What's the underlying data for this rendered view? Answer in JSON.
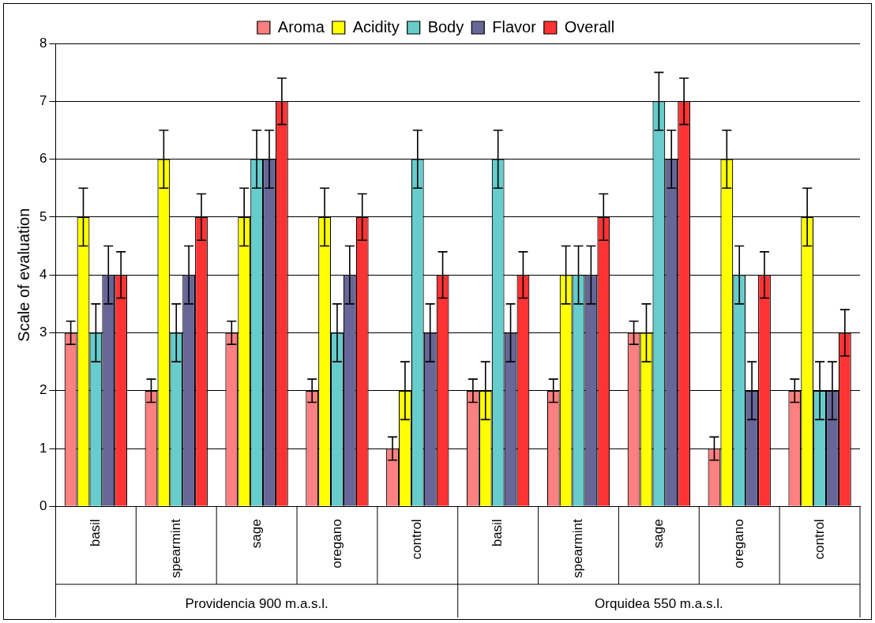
{
  "chart_data": {
    "type": "bar",
    "ylabel": "Scale of evaluation",
    "categories": [
      "basil",
      "spearmint",
      "sage",
      "oregano",
      "control",
      "basil",
      "spearmint",
      "sage",
      "oregano",
      "control"
    ],
    "annotations": [
      "Providencia 900 m.a.s.l.",
      "Orquidea 550 m.a.s.l."
    ],
    "series": [
      {
        "name": "Aroma",
        "color": "#ff8080",
        "values": [
          3,
          2,
          3,
          2,
          1,
          2,
          2,
          3,
          1,
          2
        ],
        "errors": [
          0.2,
          0.2,
          0.2,
          0.2,
          0.2,
          0.2,
          0.2,
          0.2,
          0.2,
          0.2
        ]
      },
      {
        "name": "Acidity",
        "color": "#ffff00",
        "values": [
          5,
          6,
          5,
          5,
          2,
          2,
          4,
          3,
          6,
          5
        ],
        "errors": [
          0.5,
          0.5,
          0.5,
          0.5,
          0.5,
          0.5,
          0.5,
          0.5,
          0.5,
          0.5
        ]
      },
      {
        "name": "Body",
        "color": "#66cccc",
        "values": [
          3,
          3,
          6,
          3,
          6,
          6,
          4,
          7,
          4,
          2
        ],
        "errors": [
          0.5,
          0.5,
          0.5,
          0.5,
          0.5,
          0.5,
          0.5,
          0.5,
          0.5,
          0.5
        ]
      },
      {
        "name": "Flavor",
        "color": "#666699",
        "values": [
          4,
          4,
          6,
          4,
          3,
          3,
          4,
          6,
          2,
          2
        ],
        "errors": [
          0.5,
          0.5,
          0.5,
          0.5,
          0.5,
          0.5,
          0.5,
          0.5,
          0.5,
          0.5
        ]
      },
      {
        "name": "Overall",
        "color": "#ff3333",
        "values": [
          4,
          5,
          7,
          5,
          4,
          4,
          5,
          7,
          4,
          3
        ],
        "errors": [
          0.4,
          0.4,
          0.4,
          0.4,
          0.4,
          0.4,
          0.4,
          0.4,
          0.4,
          0.4
        ]
      }
    ],
    "ylim": [
      0,
      8
    ],
    "yticks": [
      0,
      1,
      2,
      3,
      4,
      5,
      6,
      7,
      8
    ],
    "grid": "y",
    "legend": "top"
  }
}
